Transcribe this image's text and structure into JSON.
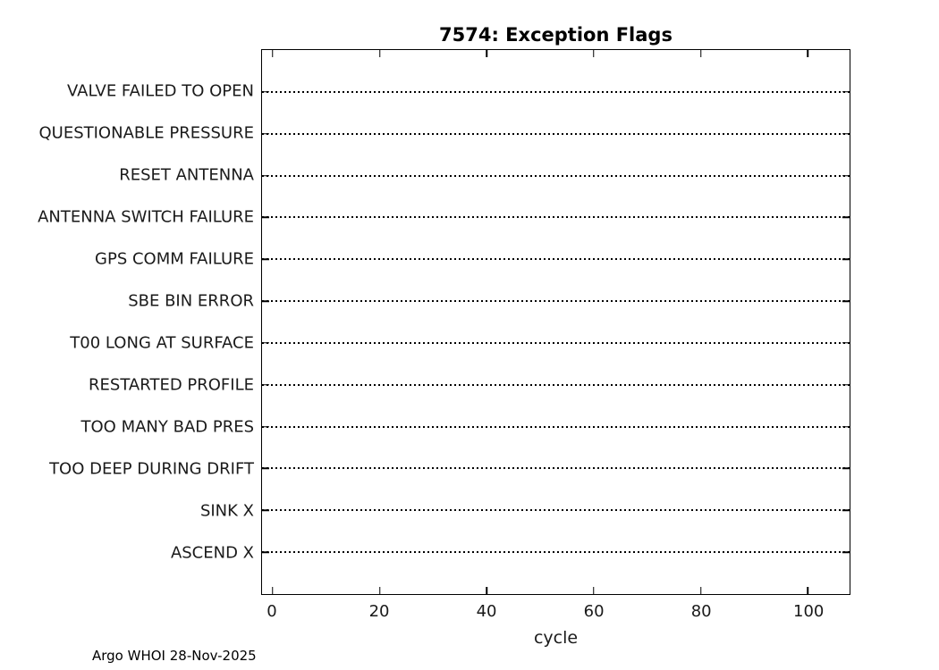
{
  "figure": {
    "footer_note": "Argo WHOI 28-Nov-2025",
    "background_color": "#ffffff",
    "frame_color": "#000000",
    "text_color": "#1a1a1a"
  },
  "chart_data": {
    "type": "line",
    "title": "7574: Exception Flags",
    "xlabel": "cycle",
    "ylabel": "",
    "categories": [
      "VALVE FAILED TO OPEN",
      "QUESTIONABLE PRESSURE",
      "RESET ANTENNA",
      "ANTENNA SWITCH FAILURE",
      "GPS COMM FAILURE",
      "SBE BIN ERROR",
      "T00 LONG AT SURFACE",
      "RESTARTED PROFILE",
      "TOO MANY BAD PRES",
      "TOO DEEP DURING DRIFT",
      "SINK X",
      "ASCEND X"
    ],
    "x_ticks": [
      0,
      20,
      40,
      60,
      80,
      100
    ],
    "xlim": [
      -2,
      107.8
    ],
    "grid": false,
    "legend": "none",
    "line_style": "dotted",
    "series": [],
    "notes": "Each exception flag row shows an empty dotted baseline spanning all cycles; no exception events are marked for any cycle."
  }
}
